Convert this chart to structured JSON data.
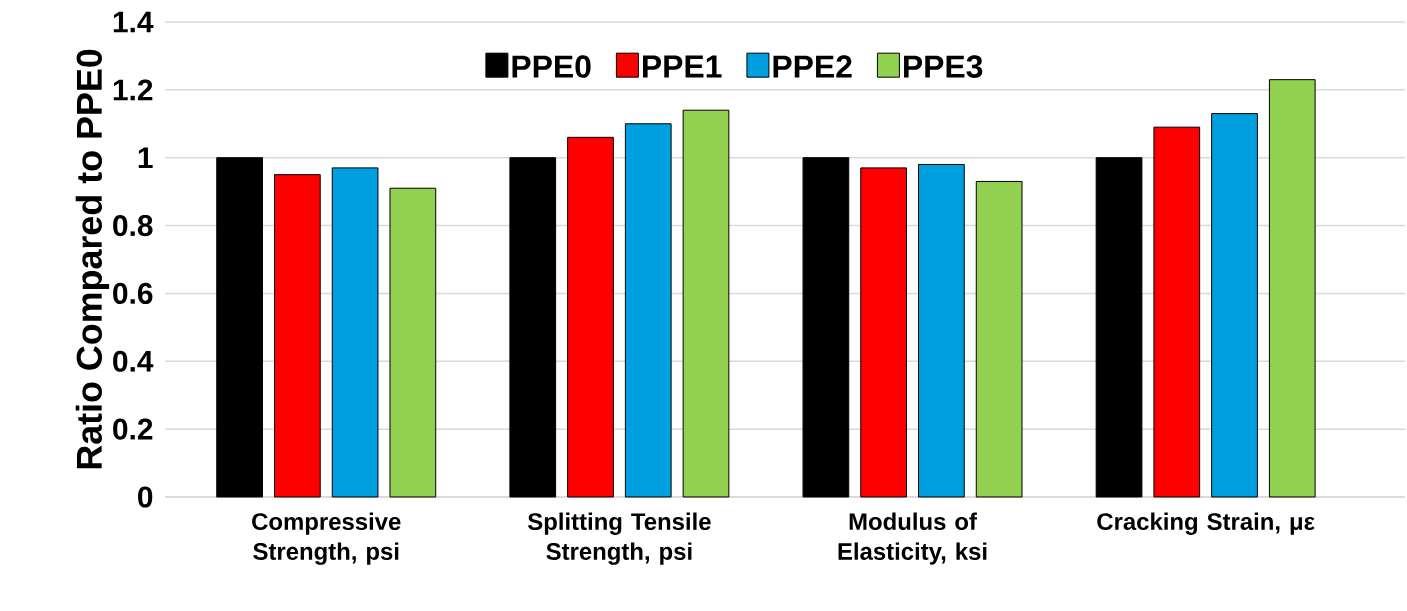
{
  "chart_data": {
    "type": "bar",
    "ylabel": "Ratio Compared to PPE0",
    "categories": [
      "Compressive Strength, psi",
      "Splitting Tensile Strength, psi",
      "Modulus of Elasticity, ksi",
      "Cracking Strain, με"
    ],
    "series": [
      {
        "name": "PPE0",
        "color": "#000000",
        "values": [
          1,
          1,
          1,
          1
        ]
      },
      {
        "name": "PPE1",
        "color": "#ff0000",
        "values": [
          0.95,
          1.06,
          0.97,
          1.09
        ]
      },
      {
        "name": "PPE2",
        "color": "#00a0e0",
        "values": [
          0.97,
          1.1,
          0.98,
          1.13
        ]
      },
      {
        "name": "PPE3",
        "color": "#92d050",
        "values": [
          0.91,
          1.14,
          0.93,
          1.23
        ]
      }
    ],
    "ylim": [
      0,
      1.4
    ],
    "yticks": [
      0,
      0.2,
      0.4,
      0.6,
      0.8,
      1,
      1.2,
      1.4
    ],
    "grid": "y",
    "legend": "top"
  }
}
